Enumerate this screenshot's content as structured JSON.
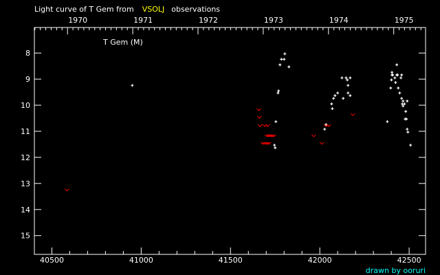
{
  "title": {
    "prefix": "Light curve of T Gem from",
    "source": "VSOLJ",
    "suffix": "observations"
  },
  "credit": "drawn by ooruri",
  "colors": {
    "background": "#000000",
    "axis": "#ffffff",
    "source": "#ffff00",
    "credit": "#00ffff",
    "visual": "#ffffff",
    "fainter_than": "#ff0000"
  },
  "chart_data": {
    "type": "scatter",
    "series_label": "T Gem (M)",
    "xlabel": "",
    "ylabel": "",
    "xlim": [
      40402,
      42592
    ],
    "ylim": [
      7.02,
      15.72
    ],
    "y_inverted": true,
    "grid": false,
    "x_ticks": [
      "40500",
      "41000",
      "41500",
      "42000",
      "42500"
    ],
    "y_ticks": [
      "8",
      "9",
      "10",
      "11",
      "12",
      "13",
      "14",
      "15"
    ],
    "year_ticks": [
      "1970",
      "1971",
      "1972",
      "1973",
      "1974",
      "1975"
    ],
    "series": [
      {
        "marker": "plus",
        "points": [
          [
            40950,
            9.24
          ],
          [
            41804,
            8.03
          ],
          [
            41785,
            8.24
          ],
          [
            41800,
            8.24
          ],
          [
            41777,
            8.45
          ],
          [
            41827,
            8.53
          ],
          [
            41769,
            9.45
          ],
          [
            41766,
            9.53
          ],
          [
            41754,
            10.63
          ],
          [
            41746,
            11.53
          ],
          [
            41750,
            11.63
          ],
          [
            42124,
            8.95
          ],
          [
            42147,
            8.95
          ],
          [
            42170,
            8.95
          ],
          [
            42154,
            9.03
          ],
          [
            42158,
            9.24
          ],
          [
            42100,
            9.53
          ],
          [
            42158,
            9.53
          ],
          [
            42085,
            9.63
          ],
          [
            42170,
            9.63
          ],
          [
            42077,
            9.74
          ],
          [
            42131,
            9.74
          ],
          [
            42066,
            9.95
          ],
          [
            42070,
            10.13
          ],
          [
            42035,
            10.74
          ],
          [
            42027,
            10.92
          ],
          [
            42431,
            8.45
          ],
          [
            42404,
            8.74
          ],
          [
            42404,
            8.84
          ],
          [
            42408,
            8.84
          ],
          [
            42431,
            8.84
          ],
          [
            42435,
            8.84
          ],
          [
            42458,
            8.84
          ],
          [
            42420,
            8.95
          ],
          [
            42454,
            8.95
          ],
          [
            42401,
            9.03
          ],
          [
            42424,
            9.13
          ],
          [
            42397,
            9.34
          ],
          [
            42439,
            9.34
          ],
          [
            42447,
            9.53
          ],
          [
            42458,
            9.74
          ],
          [
            42466,
            9.84
          ],
          [
            42489,
            9.84
          ],
          [
            42462,
            9.95
          ],
          [
            42474,
            9.95
          ],
          [
            42466,
            10.03
          ],
          [
            42481,
            10.24
          ],
          [
            42478,
            10.53
          ],
          [
            42485,
            10.53
          ],
          [
            42378,
            10.63
          ],
          [
            42489,
            10.92
          ],
          [
            42493,
            11.03
          ],
          [
            42508,
            11.53
          ]
        ]
      },
      {
        "marker": "v",
        "points": [
          [
            40584,
            13.26
          ],
          [
            41658,
            10.18
          ],
          [
            41662,
            10.47
          ],
          [
            41665,
            10.79
          ],
          [
            41692,
            10.79
          ],
          [
            41708,
            10.79
          ],
          [
            41704,
            11.18
          ],
          [
            41712,
            11.18
          ],
          [
            41719,
            11.18
          ],
          [
            41727,
            11.18
          ],
          [
            41735,
            11.18
          ],
          [
            41743,
            11.18
          ],
          [
            41681,
            11.47
          ],
          [
            41689,
            11.47
          ],
          [
            41700,
            11.47
          ],
          [
            41708,
            11.47
          ],
          [
            41716,
            11.47
          ],
          [
            41966,
            11.18
          ],
          [
            42012,
            11.47
          ],
          [
            42035,
            10.79
          ],
          [
            42050,
            10.79
          ],
          [
            42185,
            10.37
          ]
        ]
      }
    ]
  }
}
